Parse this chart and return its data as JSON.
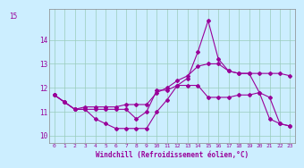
{
  "xlabel": "Windchill (Refroidissement éolien,°C)",
  "background_color": "#cceeff",
  "grid_color": "#99ccbb",
  "line_color": "#990099",
  "xlim": [
    -0.5,
    23.5
  ],
  "ylim": [
    9.7,
    15.3
  ],
  "xtick_labels": [
    "0",
    "1",
    "2",
    "3",
    "4",
    "5",
    "6",
    "7",
    "8",
    "9",
    "10",
    "11",
    "12",
    "13",
    "14",
    "15",
    "16",
    "17",
    "18",
    "19",
    "20",
    "21",
    "22",
    "23"
  ],
  "xtick_vals": [
    0,
    1,
    2,
    3,
    4,
    5,
    6,
    7,
    8,
    9,
    10,
    11,
    12,
    13,
    14,
    15,
    16,
    17,
    18,
    19,
    20,
    21,
    22,
    23
  ],
  "ytick_vals": [
    10,
    11,
    12,
    13,
    14
  ],
  "ytick_extra": 15,
  "series": [
    {
      "x": [
        0,
        1,
        2,
        3,
        4,
        5,
        6,
        7,
        8,
        9,
        10,
        11,
        12,
        13,
        14,
        15,
        16,
        17,
        18,
        19,
        20,
        21,
        22,
        23
      ],
      "y": [
        11.7,
        11.4,
        11.1,
        11.1,
        10.7,
        10.5,
        10.3,
        10.3,
        10.3,
        10.3,
        11.0,
        11.5,
        12.1,
        12.4,
        13.5,
        14.8,
        13.2,
        12.7,
        12.6,
        12.6,
        11.8,
        10.7,
        10.5,
        10.4
      ]
    },
    {
      "x": [
        0,
        1,
        2,
        3,
        4,
        5,
        6,
        7,
        8,
        9,
        10,
        11,
        12,
        13,
        14,
        15,
        16,
        17,
        18,
        19,
        20,
        21,
        22,
        23
      ],
      "y": [
        11.7,
        11.4,
        11.1,
        11.1,
        11.1,
        11.1,
        11.1,
        11.1,
        10.7,
        11.0,
        11.9,
        11.9,
        12.1,
        12.1,
        12.1,
        11.6,
        11.6,
        11.6,
        11.7,
        11.7,
        11.8,
        11.6,
        10.5,
        10.4
      ]
    },
    {
      "x": [
        0,
        1,
        2,
        3,
        4,
        5,
        6,
        7,
        8,
        9,
        10,
        11,
        12,
        13,
        14,
        15,
        16,
        17,
        18,
        19,
        20,
        21,
        22,
        23
      ],
      "y": [
        11.7,
        11.4,
        11.1,
        11.2,
        11.2,
        11.2,
        11.2,
        11.3,
        11.3,
        11.3,
        11.8,
        12.0,
        12.3,
        12.5,
        12.9,
        13.0,
        13.0,
        12.7,
        12.6,
        12.6,
        12.6,
        12.6,
        12.6,
        12.5
      ]
    }
  ]
}
